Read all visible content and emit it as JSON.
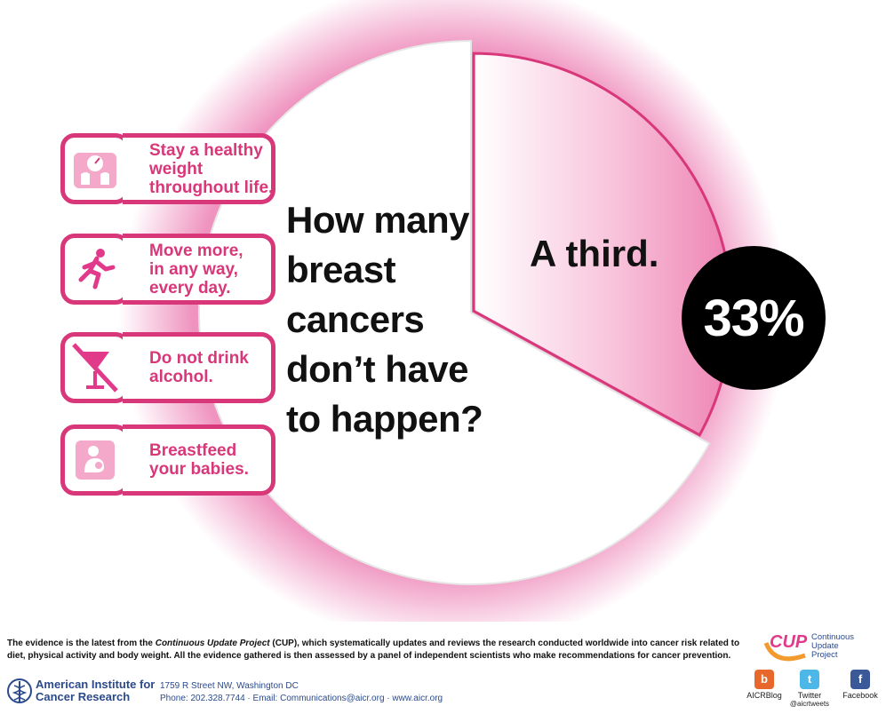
{
  "chart_data": {
    "type": "pie",
    "title": "How many breast cancers don’t have to happen?",
    "slices": [
      {
        "label": "A third.",
        "value": 33,
        "color": "#f4a9cb"
      },
      {
        "label": "",
        "value": 67,
        "color": "#ffffff"
      }
    ],
    "badge_value": "33%"
  },
  "headline": {
    "lines": [
      "How many",
      "breast",
      "cancers",
      "don’t have",
      "to happen?"
    ]
  },
  "tips": [
    {
      "icon": "scale-icon",
      "lines": [
        "Stay a healthy",
        "weight",
        "throughout life."
      ]
    },
    {
      "icon": "runner-icon",
      "lines": [
        "Move more,",
        "in any way,",
        "every day."
      ]
    },
    {
      "icon": "no-alcohol-icon",
      "lines": [
        "Do not drink",
        "alcohol."
      ]
    },
    {
      "icon": "breastfeeding-icon",
      "lines": [
        "Breastfeed",
        "your babies."
      ]
    }
  ],
  "footer": {
    "evidence_pre": "The evidence is the latest from the ",
    "evidence_em": "Continuous Update Project",
    "evidence_post": " (CUP), which systematically updates and reviews the research conducted worldwide into cancer risk related to diet, physical activity and body weight. All the evidence gathered is then assessed by a panel of independent scientists who make recommendations for cancer prevention.",
    "org_name_line1": "American Institute for",
    "org_name_line2": "Cancer Research",
    "address_line1": "1759 R Street NW, Washington DC",
    "address_line2": "Phone: 202.328.7744 · Email: Communications@aicr.org · www.aicr.org",
    "cup_abbr": "CUP",
    "cup_name_lines": [
      "Continuous",
      "Update",
      "Project"
    ],
    "social": [
      {
        "icon": "blog-icon",
        "label": "AICRBlog",
        "handle": "",
        "color": "#e8672a"
      },
      {
        "icon": "twitter-icon",
        "label": "Twitter",
        "handle": "@aicrtweets",
        "color": "#4db7e8"
      },
      {
        "icon": "facebook-icon",
        "label": "Facebook",
        "handle": "",
        "color": "#3b5998"
      }
    ]
  },
  "colors": {
    "accent": "#d8377a",
    "slice_pink": "#f4a9cb",
    "badge": "#000000",
    "org_blue": "#2b4a8c"
  }
}
